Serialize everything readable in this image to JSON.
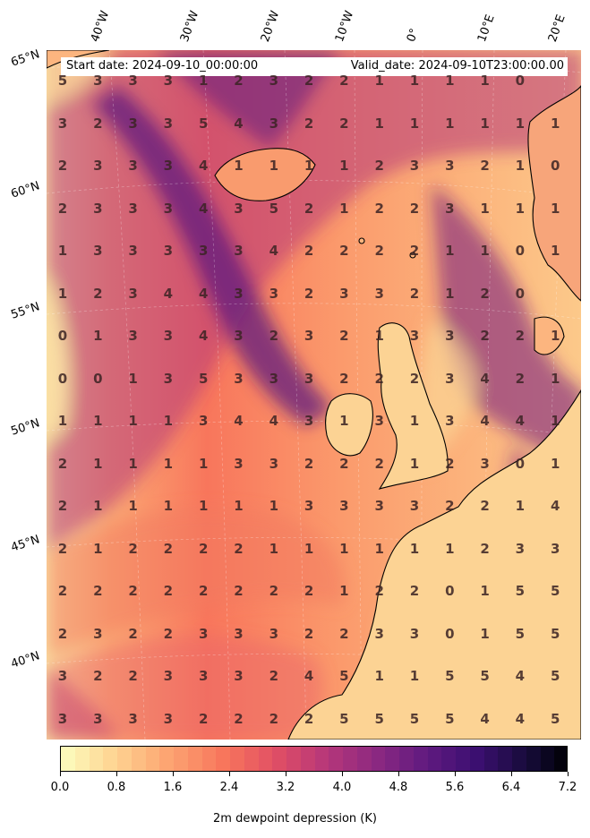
{
  "header": {
    "start_date": "Start date: 2024-09-10_00:00:00",
    "valid_date": "Valid_date: 2024-09-10T23:00:00.00"
  },
  "lon_labels": [
    "40°W",
    "30°W",
    "20°W",
    "10°W",
    "0°",
    "10°E",
    "20°E"
  ],
  "lat_labels": [
    "65°N",
    "60°N",
    "55°N",
    "50°N",
    "45°N",
    "40°N"
  ],
  "grid_values": [
    [
      5,
      3,
      3,
      3,
      1,
      2,
      3,
      2,
      2,
      1,
      1,
      1,
      1,
      0,
      ""
    ],
    [
      3,
      2,
      3,
      3,
      5,
      4,
      3,
      2,
      2,
      1,
      1,
      1,
      1,
      1,
      1
    ],
    [
      2,
      3,
      3,
      3,
      4,
      1,
      1,
      1,
      1,
      2,
      3,
      3,
      2,
      1,
      0
    ],
    [
      2,
      3,
      3,
      3,
      4,
      3,
      5,
      2,
      1,
      2,
      2,
      3,
      1,
      1,
      1
    ],
    [
      1,
      3,
      3,
      3,
      3,
      3,
      4,
      2,
      2,
      2,
      2,
      1,
      1,
      0,
      1
    ],
    [
      1,
      2,
      3,
      4,
      4,
      3,
      3,
      2,
      3,
      3,
      2,
      1,
      2,
      0,
      ""
    ],
    [
      0,
      1,
      3,
      3,
      4,
      3,
      2,
      3,
      2,
      1,
      3,
      3,
      2,
      2,
      1
    ],
    [
      0,
      0,
      1,
      3,
      5,
      3,
      3,
      3,
      2,
      2,
      2,
      3,
      4,
      2,
      1
    ],
    [
      1,
      1,
      1,
      1,
      3,
      4,
      4,
      3,
      1,
      3,
      1,
      3,
      4,
      4,
      1
    ],
    [
      2,
      1,
      1,
      1,
      1,
      3,
      3,
      2,
      2,
      2,
      1,
      2,
      3,
      0,
      1
    ],
    [
      2,
      1,
      1,
      1,
      1,
      1,
      1,
      3,
      3,
      3,
      3,
      2,
      2,
      1,
      4
    ],
    [
      2,
      1,
      2,
      2,
      2,
      2,
      1,
      1,
      1,
      1,
      1,
      1,
      2,
      3,
      3
    ],
    [
      2,
      2,
      2,
      2,
      2,
      2,
      2,
      2,
      1,
      2,
      2,
      0,
      1,
      5,
      5
    ],
    [
      2,
      3,
      2,
      2,
      3,
      3,
      3,
      2,
      2,
      3,
      3,
      0,
      1,
      5,
      5
    ],
    [
      3,
      2,
      2,
      3,
      3,
      3,
      2,
      4,
      5,
      1,
      1,
      5,
      5,
      4,
      5
    ],
    [
      3,
      3,
      3,
      3,
      2,
      2,
      2,
      2,
      5,
      5,
      5,
      5,
      4,
      4,
      5
    ]
  ],
  "colorbar": {
    "ticks": [
      "0.0",
      "0.8",
      "1.6",
      "2.4",
      "3.2",
      "4.0",
      "4.8",
      "5.6",
      "6.4",
      "7.2"
    ],
    "min": 0.0,
    "max": 7.2,
    "levels": 36,
    "label": "2m dewpoint depression (K)"
  },
  "colors": {
    "low": "#fcfdbf",
    "mid": "#f8765c",
    "high": "#000004",
    "coast": "#000000"
  }
}
